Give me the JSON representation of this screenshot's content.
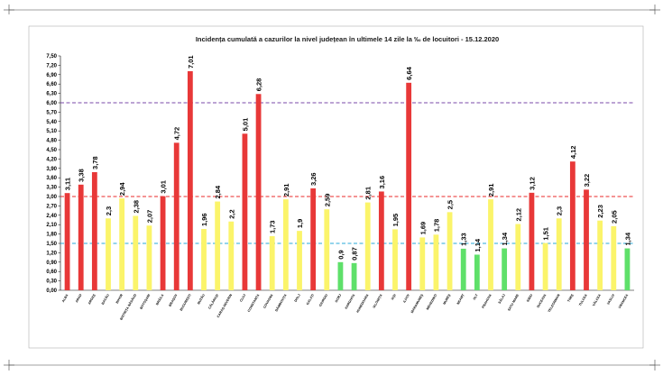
{
  "chart_data": {
    "type": "bar",
    "title": "Incidența cumulată a cazurilor la nivel județean în ultimele 14 zile   la ‰ de locuitori  - 15.12.2020",
    "xlabel": "",
    "ylabel": "",
    "ylim": [
      0,
      7.5
    ],
    "ytick_step": 0.3,
    "grid": false,
    "categories": [
      "ALBA",
      "ARAD",
      "ARGEȘ",
      "BACĂU",
      "BIHOR",
      "BISTRIȚA NĂSĂUD",
      "BOTOȘANI",
      "BRĂILA",
      "BRAȘOV",
      "BUCUREȘTI",
      "BUZĂU",
      "CĂLĂRAȘI",
      "CARAȘ-SEVERIN",
      "CLUJ",
      "CONSTANȚA",
      "COVASNA",
      "DÂMBOVIȚA",
      "DOLJ",
      "GALAȚI",
      "GIURGIU",
      "GORJ",
      "HARGHITA",
      "HUNEDOARA",
      "IALOMIȚA",
      "IAȘI",
      "ILFOV",
      "MARAMUREȘ",
      "MEHEDINȚI",
      "MUREȘ",
      "NEAMȚ",
      "OLT",
      "PRAHOVA",
      "SĂLAJ",
      "SATU MARE",
      "SIBIU",
      "SUCEAVA",
      "TELEORMAN",
      "TIMIȘ",
      "TULCEA",
      "VÂLCEA",
      "VASLUI",
      "VRANCEA"
    ],
    "values": [
      3.11,
      3.38,
      3.78,
      2.3,
      2.94,
      2.38,
      2.07,
      3.01,
      4.72,
      7.01,
      1.96,
      2.84,
      2.2,
      5.01,
      6.28,
      1.73,
      2.91,
      1.9,
      3.26,
      2.59,
      0.9,
      0.87,
      2.81,
      3.16,
      1.95,
      6.64,
      1.69,
      1.78,
      2.5,
      1.33,
      1.14,
      2.91,
      1.34,
      2.12,
      3.12,
      1.51,
      2.3,
      4.12,
      3.22,
      2.23,
      2.05,
      1.34
    ],
    "value_labels": [
      "3,11",
      "3,38",
      "3,78",
      "2,3",
      "2,94",
      "2,38",
      "2,07",
      "3,01",
      "4,72",
      "7,01",
      "1,96",
      "2,84",
      "2,2",
      "5,01",
      "6,28",
      "1,73",
      "2,91",
      "1,9",
      "3,26",
      "2,59",
      "0,9",
      "0,87",
      "2,81",
      "3,16",
      "1,95",
      "6,64",
      "1,69",
      "1,78",
      "2,5",
      "1,33",
      "1,14",
      "2,91",
      "1,34",
      "2,12",
      "3,12",
      "1,51",
      "2,3",
      "4,12",
      "3,22",
      "2,23",
      "2,05",
      "1,34"
    ],
    "thresholds": [
      {
        "value": 1.5,
        "color": "#2aa8d8"
      },
      {
        "value": 3.0,
        "color": "#e82a2a"
      },
      {
        "value": 6.0,
        "color": "#7a4aa8"
      }
    ],
    "colors": {
      "low": "#5fe06a",
      "mid": "#fbf46a",
      "high": "#e83838"
    }
  }
}
